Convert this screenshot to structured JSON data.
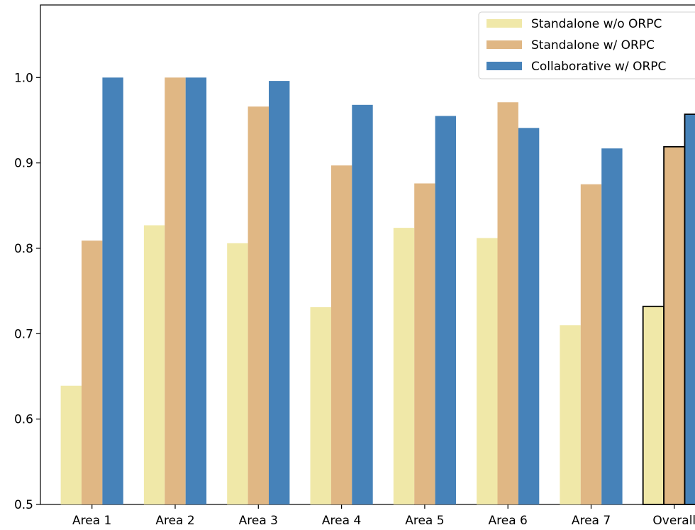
{
  "chart_data": {
    "type": "bar",
    "categories": [
      "Area 1",
      "Area 2",
      "Area 3",
      "Area 4",
      "Area 5",
      "Area 6",
      "Area 7",
      "Overall"
    ],
    "series": [
      {
        "name": "Standalone w/o ORPC",
        "color": "#f0e8a8",
        "values": [
          0.639,
          0.827,
          0.806,
          0.731,
          0.824,
          0.812,
          0.71,
          0.732
        ]
      },
      {
        "name": "Standalone w/ ORPC",
        "color": "#e0b784",
        "values": [
          0.809,
          1.0,
          0.966,
          0.897,
          0.876,
          0.971,
          0.875,
          0.919
        ]
      },
      {
        "name": "Collaborative w/ ORPC",
        "color": "#4682b9",
        "values": [
          1.0,
          1.0,
          0.996,
          0.968,
          0.955,
          0.941,
          0.917,
          0.957
        ]
      }
    ],
    "highlight_category": "Overall",
    "yticks": [
      "0.5",
      "0.6",
      "0.7",
      "0.8",
      "0.9",
      "1.0"
    ],
    "ylim": [
      0.5,
      1.085
    ],
    "title": "",
    "xlabel": "",
    "ylabel": "",
    "legend_position": "top-right",
    "grid": false
  }
}
